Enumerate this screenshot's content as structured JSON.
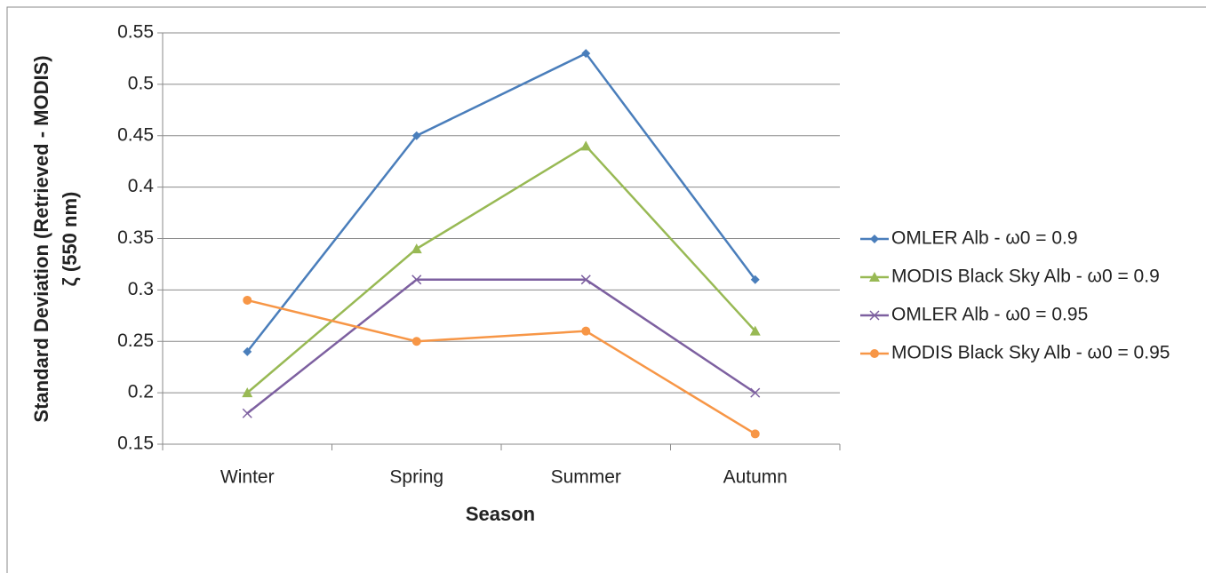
{
  "chart_data": {
    "type": "line",
    "ylabel": [
      "Standard Deviation (Retrieved - MODIS)",
      "ζ (550 nm)"
    ],
    "xlabel": "Season",
    "categories": [
      "Winter",
      "Spring",
      "Summer",
      "Autumn"
    ],
    "series": [
      {
        "name": "OMLER Alb - ω0 = 0.9",
        "color": "#4a7ebb",
        "marker": "diamond",
        "values": [
          0.24,
          0.45,
          0.53,
          0.31
        ]
      },
      {
        "name": "MODIS Black Sky Alb - ω0 = 0.9",
        "color": "#98b954",
        "marker": "triangle",
        "values": [
          0.2,
          0.34,
          0.44,
          0.26
        ]
      },
      {
        "name": "OMLER Alb - ω0 = 0.95",
        "color": "#7d60a0",
        "marker": "x",
        "values": [
          0.18,
          0.31,
          0.31,
          0.2
        ]
      },
      {
        "name": "MODIS Black Sky Alb - ω0 = 0.95",
        "color": "#f79646",
        "marker": "circle",
        "values": [
          0.29,
          0.25,
          0.26,
          0.16
        ]
      }
    ],
    "ylim": [
      0.15,
      0.55
    ],
    "yticks": [
      0.15,
      0.2,
      0.25,
      0.3,
      0.35,
      0.4,
      0.45,
      0.5,
      0.55
    ],
    "grid": true,
    "legend": "right"
  }
}
